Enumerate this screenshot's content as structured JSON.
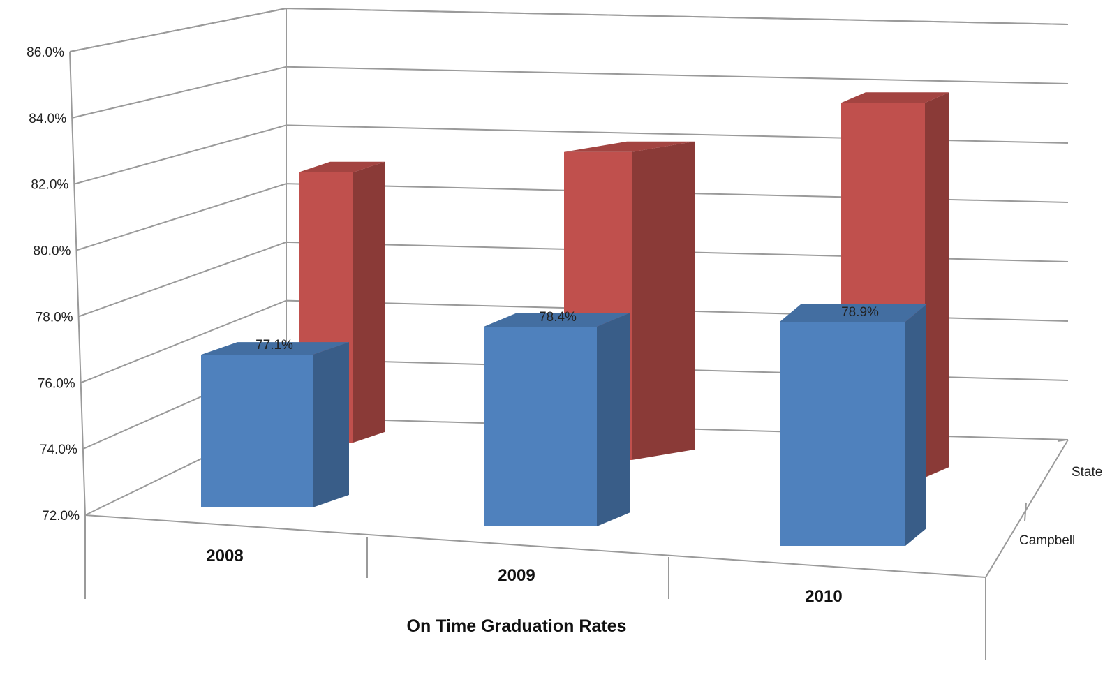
{
  "chart_data": {
    "type": "bar",
    "style": "3d-column",
    "xlabel": "On Time Graduation Rates",
    "categories": [
      "2008",
      "2009",
      "2010"
    ],
    "series": [
      {
        "name": "Campbell",
        "values": [
          77.1,
          78.4,
          78.9
        ],
        "color": "#4f81bd",
        "data_labels": [
          "77.1%",
          "78.4%",
          "78.9%"
        ]
      },
      {
        "name": "State",
        "values": [
          83.0,
          84.0,
          86.0
        ],
        "color": "#c0504d"
      }
    ],
    "ylim": [
      72,
      86
    ],
    "yticks": [
      "72.0%",
      "74.0%",
      "76.0%",
      "78.0%",
      "80.0%",
      "82.0%",
      "84.0%",
      "86.0%"
    ],
    "grid": true
  }
}
